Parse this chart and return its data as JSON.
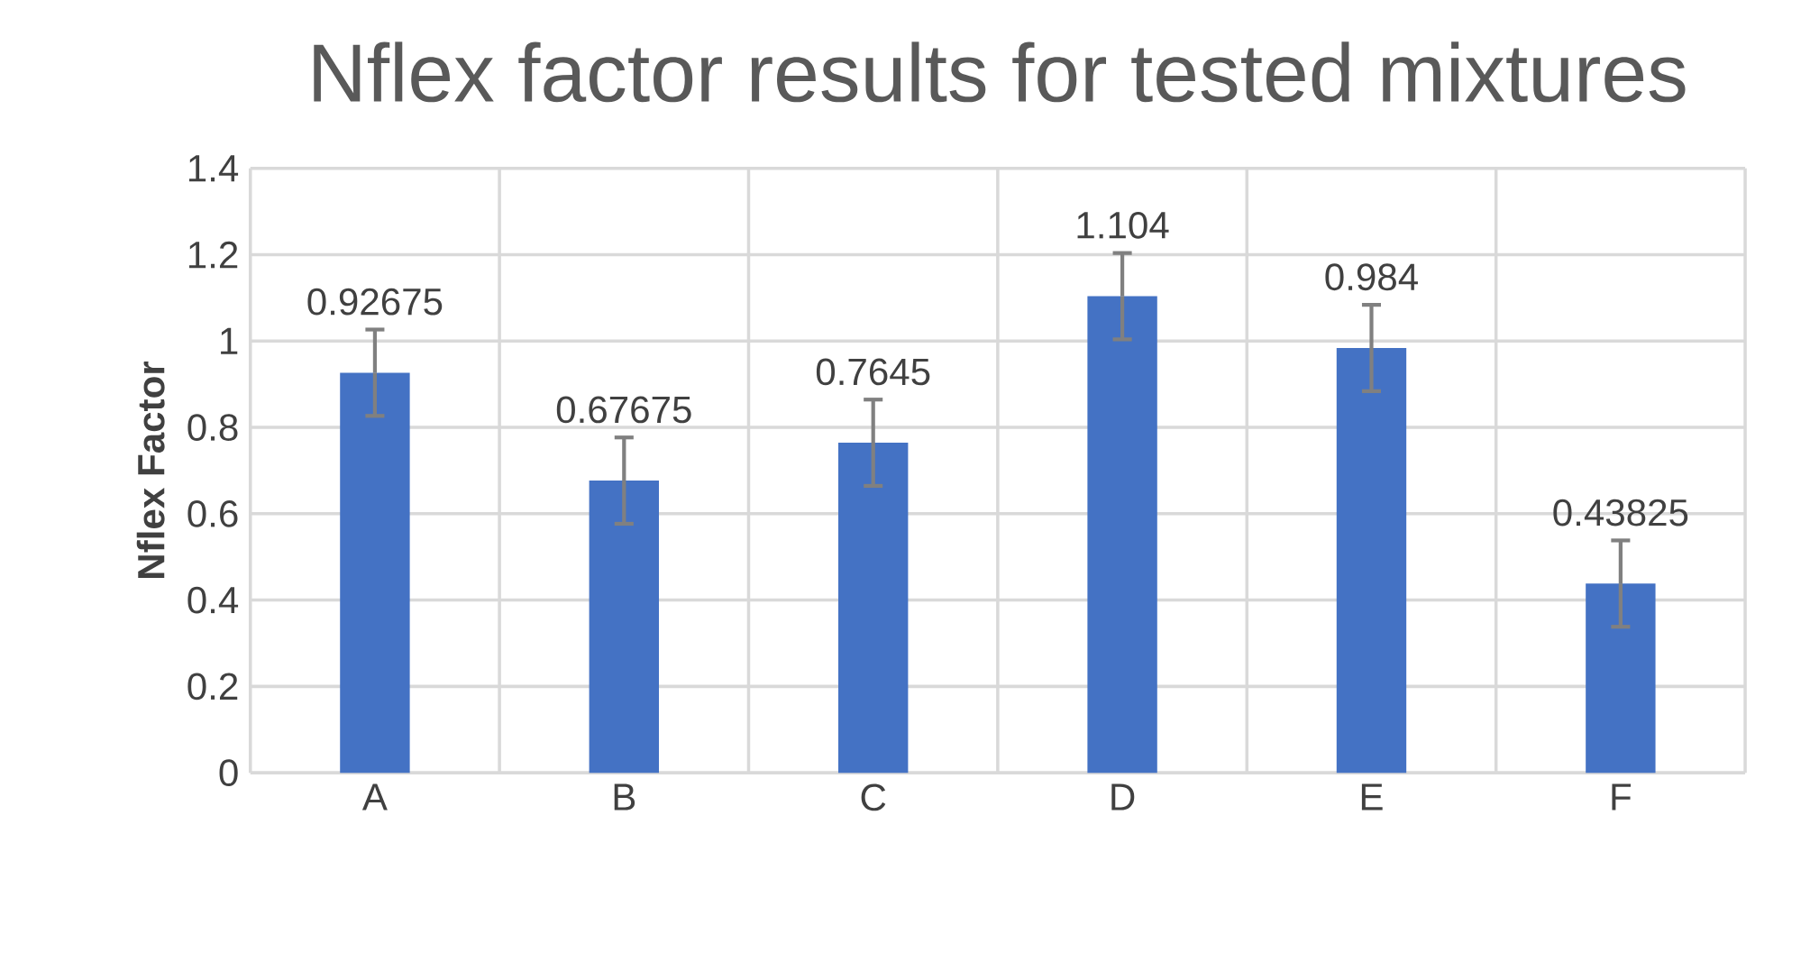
{
  "chart_data": {
    "type": "bar",
    "title": "Nflex factor results for tested mixtures",
    "ylabel": "Nflex  Factor",
    "categories": [
      "A",
      "B",
      "C",
      "D",
      "E",
      "F"
    ],
    "values": [
      0.92675,
      0.67675,
      0.7645,
      1.104,
      0.984,
      0.43825
    ],
    "errors": [
      0.1,
      0.1,
      0.1,
      0.1,
      0.1,
      0.1
    ],
    "color": "#4472c4",
    "data_labels": true,
    "ylim": [
      0,
      1.4
    ],
    "yticks": [
      0,
      0.2,
      0.4,
      0.6,
      0.8,
      1,
      1.2,
      1.4
    ],
    "grid": true
  }
}
